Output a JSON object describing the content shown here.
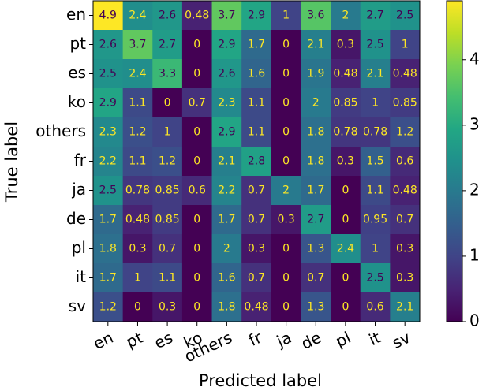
{
  "chart_data": {
    "type": "heatmap",
    "xlabel": "Predicted label",
    "ylabel": "True label",
    "x_categories": [
      "en",
      "pt",
      "es",
      "ko",
      "others",
      "fr",
      "ja",
      "de",
      "pl",
      "it",
      "sv"
    ],
    "y_categories": [
      "en",
      "pt",
      "es",
      "ko",
      "others",
      "fr",
      "ja",
      "de",
      "pl",
      "it",
      "sv"
    ],
    "values": [
      [
        4.9,
        2.4,
        2.6,
        0.48,
        3.7,
        2.9,
        1,
        3.6,
        2,
        2.7,
        2.5
      ],
      [
        2.6,
        3.7,
        2.7,
        0,
        2.9,
        1.7,
        0,
        2.1,
        0.3,
        2.5,
        1
      ],
      [
        2.5,
        2.4,
        3.3,
        0,
        2.6,
        1.6,
        0,
        1.9,
        0.48,
        2.1,
        0.48
      ],
      [
        2.9,
        1.1,
        0,
        0.7,
        2.3,
        1.1,
        0,
        2,
        0.85,
        1,
        0.85
      ],
      [
        2.3,
        1.2,
        1,
        0,
        2.9,
        1.1,
        0,
        1.8,
        0.78,
        0.78,
        1.2
      ],
      [
        2.2,
        1.1,
        1.2,
        0,
        2.1,
        2.8,
        0,
        1.8,
        0.3,
        1.5,
        0.6
      ],
      [
        2.5,
        0.78,
        0.85,
        0.6,
        2.2,
        0.7,
        2,
        1.7,
        0,
        1.1,
        0.48
      ],
      [
        1.7,
        0.48,
        0.85,
        0,
        1.7,
        0.7,
        0.3,
        2.7,
        0,
        0.95,
        0.7
      ],
      [
        1.8,
        0.3,
        0.7,
        0,
        2,
        0.3,
        0,
        1.3,
        2.4,
        1,
        0.3
      ],
      [
        1.7,
        1,
        1.1,
        0,
        1.6,
        0.7,
        0,
        0.7,
        0,
        2.5,
        0.3
      ],
      [
        1.2,
        0,
        0.3,
        0,
        1.8,
        0.48,
        0,
        1.3,
        0,
        0.6,
        2.1
      ]
    ],
    "colormap": "viridis",
    "zlim": [
      0,
      4.9
    ],
    "zticks": [
      0,
      1,
      2,
      3,
      4
    ]
  }
}
